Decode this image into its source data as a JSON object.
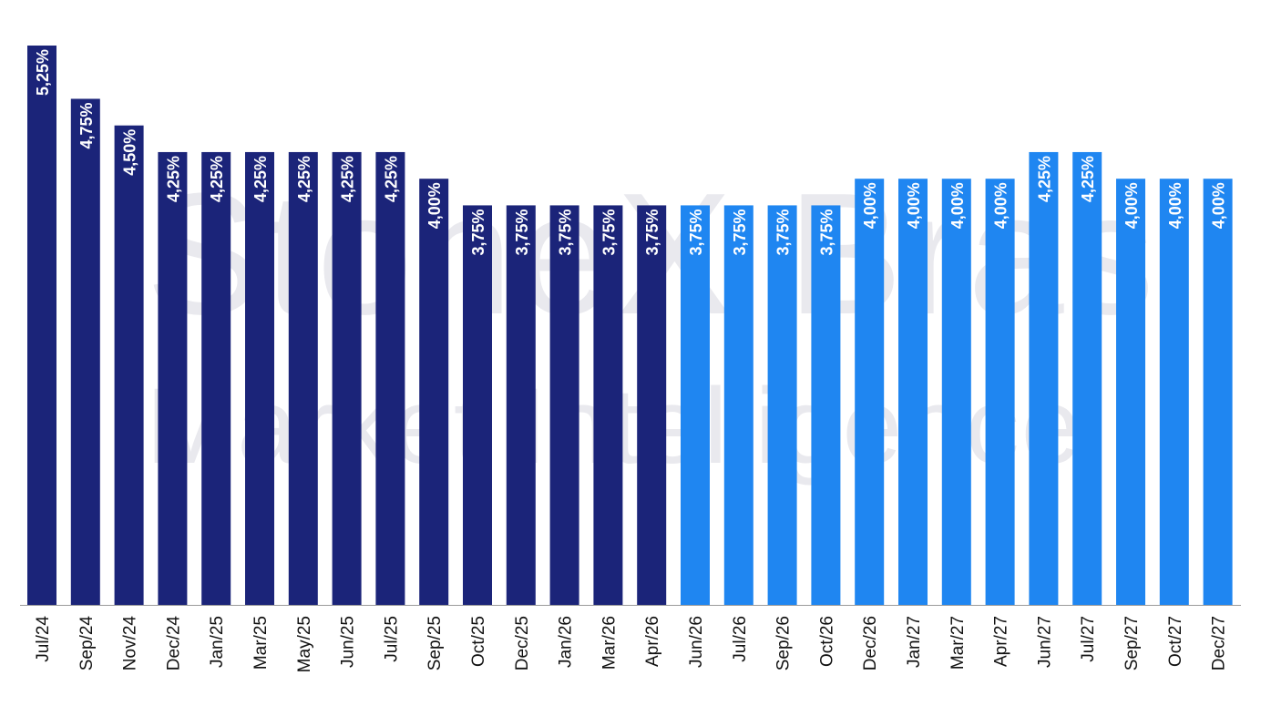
{
  "watermark": {
    "line1": "StoneX Brasil",
    "line2": "Market Intelligence"
  },
  "colors": {
    "historical": "#1b2479",
    "projected": "#1f86f1",
    "axis": "#9a9a9a",
    "label": "#ffffff",
    "tick": "#111111"
  },
  "chart_data": {
    "type": "bar",
    "title": "",
    "xlabel": "",
    "ylabel": "",
    "ylim": [
      0,
      5.25
    ],
    "grid": false,
    "categories": [
      "Jul/24",
      "Sep/24",
      "Nov/24",
      "Dec/24",
      "Jan/25",
      "Mar/25",
      "May/25",
      "Jun/25",
      "Jul/25",
      "Sep/25",
      "Oct/25",
      "Dec/25",
      "Jan/26",
      "Mar/26",
      "Apr/26",
      "Jun/26",
      "Jul/26",
      "Sep/26",
      "Oct/26",
      "Dec/26",
      "Jan/27",
      "Mar/27",
      "Apr/27",
      "Jun/27",
      "Jul/27",
      "Sep/27",
      "Oct/27",
      "Dec/27"
    ],
    "values": [
      5.25,
      4.75,
      4.5,
      4.25,
      4.25,
      4.25,
      4.25,
      4.25,
      4.25,
      4.0,
      3.75,
      3.75,
      3.75,
      3.75,
      3.75,
      3.75,
      3.75,
      3.75,
      3.75,
      4.0,
      4.0,
      4.0,
      4.0,
      4.25,
      4.25,
      4.0,
      4.0,
      4.0
    ],
    "labels": [
      "5,25%",
      "4,75%",
      "4,50%",
      "4,25%",
      "4,25%",
      "4,25%",
      "4,25%",
      "4,25%",
      "4,25%",
      "4,00%",
      "3,75%",
      "3,75%",
      "3,75%",
      "3,75%",
      "3,75%",
      "3,75%",
      "3,75%",
      "3,75%",
      "3,75%",
      "4,00%",
      "4,00%",
      "4,00%",
      "4,00%",
      "4,25%",
      "4,25%",
      "4,00%",
      "4,00%",
      "4,00%"
    ],
    "historical_count": 15
  }
}
